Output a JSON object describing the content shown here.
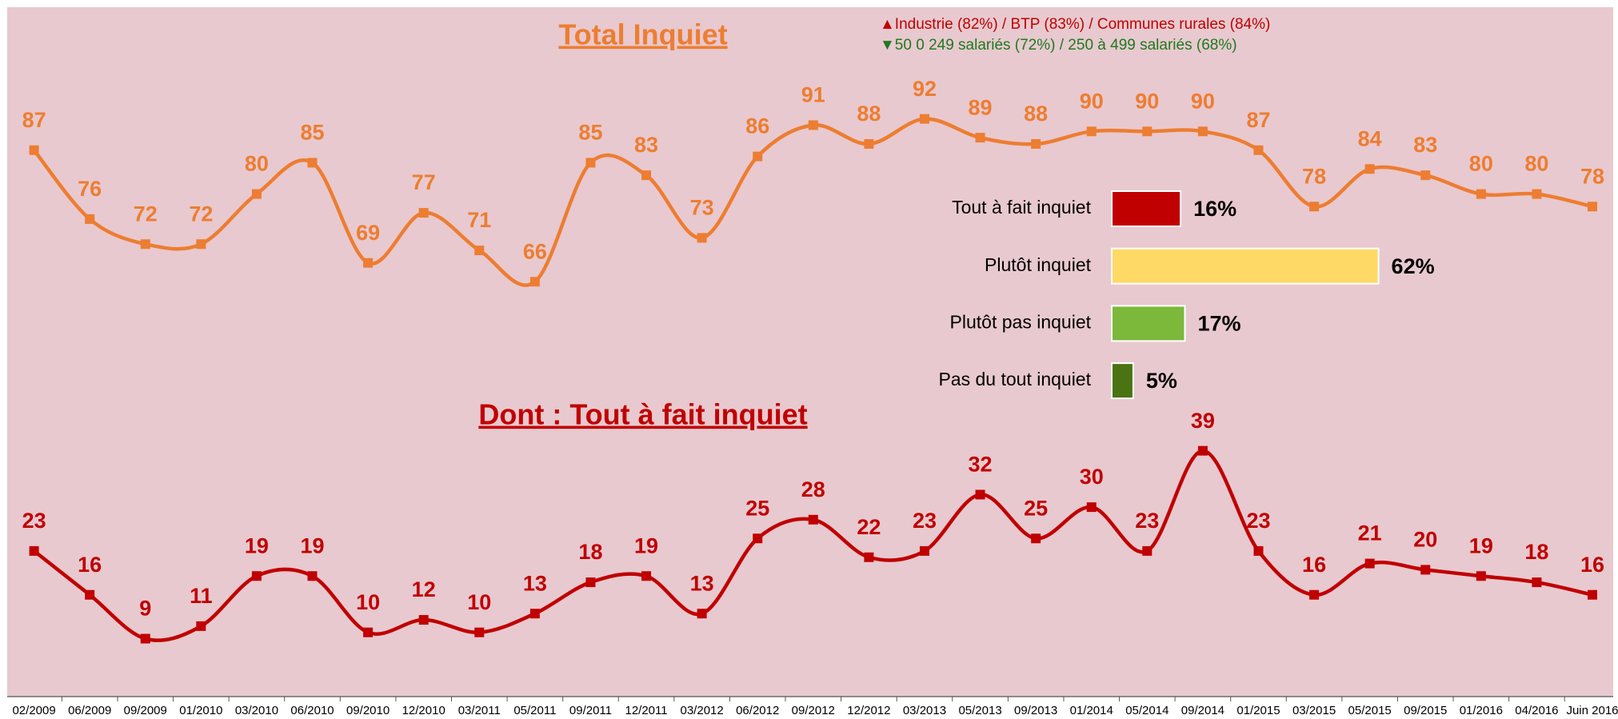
{
  "chart_data": [
    {
      "type": "line",
      "categories": [
        "02/2009",
        "06/2009",
        "09/2009",
        "01/2010",
        "03/2010",
        "06/2010",
        "09/2010",
        "12/2010",
        "03/2011",
        "05/2011",
        "09/2011",
        "12/2011",
        "03/2012",
        "06/2012",
        "09/2012",
        "12/2012",
        "03/2013",
        "05/2013",
        "09/2013",
        "01/2014",
        "05/2014",
        "09/2014",
        "01/2015",
        "03/2015",
        "05/2015",
        "09/2015",
        "01/2016",
        "04/2016",
        "Juin 2016"
      ],
      "series": [
        {
          "name": "Total Inquiet",
          "color": "#ed7d31",
          "values": [
            87,
            76,
            72,
            72,
            80,
            85,
            69,
            77,
            71,
            66,
            85,
            83,
            73,
            86,
            91,
            88,
            92,
            89,
            88,
            90,
            90,
            90,
            87,
            78,
            84,
            83,
            80,
            80,
            78
          ]
        },
        {
          "name": "Dont : Tout à fait inquiet",
          "color": "#c00000",
          "values": [
            23,
            16,
            9,
            11,
            19,
            19,
            10,
            12,
            10,
            13,
            18,
            19,
            13,
            25,
            28,
            22,
            23,
            32,
            25,
            30,
            23,
            39,
            23,
            16,
            21,
            20,
            19,
            18,
            16
          ]
        }
      ],
      "annotations": [
        {
          "text": "▲Industrie (82%) / BTP (83%) / Communes rurales (84%)",
          "color": "#c00000"
        },
        {
          "text": "▼50 0 249 salariés (72%) / 250 à 499 salariés (68%)",
          "color": "#1e7a1e"
        }
      ]
    },
    {
      "type": "hbar",
      "categories": [
        "Tout à fait inquiet",
        "Plutôt inquiet",
        "Plutôt pas inquiet",
        "Pas du tout inquiet"
      ],
      "values": [
        16,
        62,
        17,
        5
      ],
      "value_labels": [
        "16%",
        "62%",
        "17%",
        "5%"
      ],
      "colors": [
        "#c00000",
        "#ffd966",
        "#7cb83a",
        "#4a7311"
      ]
    }
  ]
}
